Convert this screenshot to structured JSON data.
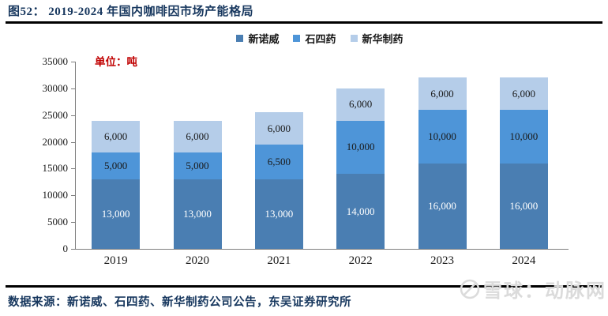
{
  "header": {
    "title": "图52： 2019-2024 年国内咖啡因市场产能格局"
  },
  "unit_label": "单位：吨",
  "footer": {
    "source": "数据来源：新诺威、石四药、新华制药公司公告，东吴证券研究所",
    "watermark": "雪球：动脉网"
  },
  "colors": {
    "title_navy": "#17375E",
    "unit_red": "#C00000",
    "axis_gray": "#7f7f7f",
    "rule_black": "#000000",
    "watermark_gray": "#dbdbdb"
  },
  "chart_data": {
    "type": "bar",
    "stacked": true,
    "title": "图52： 2019-2024 年国内咖啡因市场产能格局",
    "unit": "吨",
    "categories": [
      "2019",
      "2020",
      "2021",
      "2022",
      "2023",
      "2024"
    ],
    "series": [
      {
        "name": "新诺威",
        "color": "#4A7EB2",
        "label_color": "#ffffff",
        "values": [
          13000,
          13000,
          13000,
          14000,
          16000,
          16000
        ]
      },
      {
        "name": "石四药",
        "color": "#4E95D8",
        "label_color": "#1a1a1a",
        "values": [
          5000,
          5000,
          6500,
          10000,
          10000,
          10000
        ]
      },
      {
        "name": "新华制药",
        "color": "#B5CDE9",
        "label_color": "#1a1a1a",
        "values": [
          6000,
          6000,
          6000,
          6000,
          6000,
          6000
        ]
      }
    ],
    "totals": [
      24000,
      24000,
      25500,
      30000,
      32000,
      32000
    ],
    "ylim": [
      0,
      35000
    ],
    "ytick_step": 5000,
    "grid": false,
    "legend_position": "top-center",
    "value_label_format": "thousands-comma"
  }
}
